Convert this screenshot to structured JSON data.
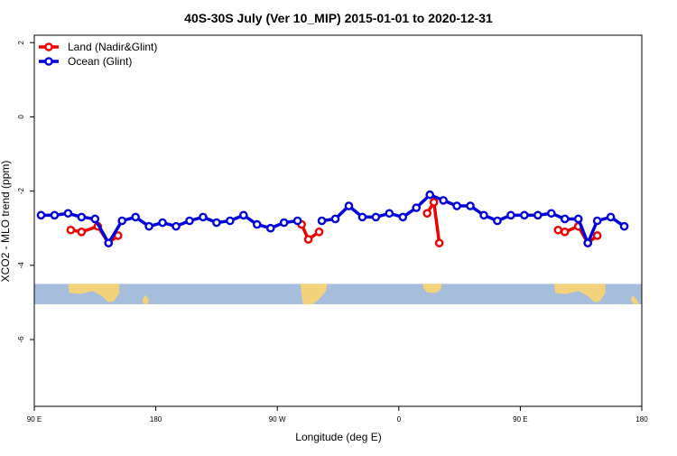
{
  "chart_data": {
    "type": "line",
    "title": "40S-30S July (Ver 10_MIP)   2015-01-01 to 2020-12-31",
    "xlabel": "Longitude (deg E)",
    "ylabel": "XCO2 - MLO trend (ppm)",
    "xlim": [
      90,
      540
    ],
    "ylim": [
      -7.8,
      2.2
    ],
    "x_ticks": [
      {
        "value": 90,
        "label": "90 E"
      },
      {
        "value": 180,
        "label": "180"
      },
      {
        "value": 270,
        "label": "90 W"
      },
      {
        "value": 360,
        "label": "0"
      },
      {
        "value": 450,
        "label": "90 E"
      },
      {
        "value": 540,
        "label": "180"
      }
    ],
    "y_ticks": [
      {
        "value": 2,
        "label": "2"
      },
      {
        "value": 0,
        "label": "0"
      },
      {
        "value": -2,
        "label": "-2"
      },
      {
        "value": -4,
        "label": "-4"
      },
      {
        "value": -6,
        "label": "-6"
      }
    ],
    "legend": {
      "position": "top-left",
      "entries": [
        {
          "label": "Land (Nadir&Glint)",
          "color": "#ee0000"
        },
        {
          "label": "Ocean (Glint)",
          "color": "#0000dd"
        }
      ]
    },
    "map_band": {
      "y_top": -4.5,
      "y_bottom": -5.05,
      "ocean_color": "#a7bddc",
      "land_color": "#f2d27a"
    },
    "series": [
      {
        "name": "Land (Nadir&Glint)",
        "color": "#ee0000",
        "segments": [
          [
            [
              117,
              -3.05
            ],
            [
              125,
              -3.1
            ],
            [
              137,
              -2.95
            ],
            [
              145,
              -3.4
            ],
            [
              152,
              -3.2
            ]
          ],
          [
            [
              288,
              -2.9
            ],
            [
              293,
              -3.3
            ],
            [
              301,
              -3.1
            ]
          ],
          [
            [
              381,
              -2.6
            ],
            [
              386,
              -2.3
            ],
            [
              390,
              -3.4
            ]
          ],
          [
            [
              478,
              -3.05
            ],
            [
              483,
              -3.1
            ],
            [
              493,
              -2.95
            ],
            [
              500,
              -3.4
            ],
            [
              507,
              -3.2
            ]
          ]
        ]
      },
      {
        "name": "Ocean (Glint)",
        "color": "#0000dd",
        "segments": [
          [
            [
              95,
              -2.65
            ],
            [
              105,
              -2.65
            ],
            [
              115,
              -2.6
            ],
            [
              125,
              -2.7
            ],
            [
              135,
              -2.75
            ],
            [
              145,
              -3.4
            ],
            [
              155,
              -2.8
            ],
            [
              165,
              -2.7
            ],
            [
              175,
              -2.95
            ],
            [
              185,
              -2.85
            ],
            [
              195,
              -2.95
            ],
            [
              205,
              -2.8
            ],
            [
              215,
              -2.7
            ],
            [
              225,
              -2.85
            ],
            [
              235,
              -2.8
            ],
            [
              245,
              -2.65
            ],
            [
              255,
              -2.9
            ],
            [
              265,
              -3.0
            ],
            [
              275,
              -2.85
            ],
            [
              285,
              -2.8
            ]
          ],
          [
            [
              303,
              -2.8
            ],
            [
              313,
              -2.75
            ],
            [
              323,
              -2.4
            ],
            [
              333,
              -2.7
            ],
            [
              343,
              -2.7
            ],
            [
              353,
              -2.6
            ],
            [
              363,
              -2.7
            ],
            [
              373,
              -2.45
            ],
            [
              383,
              -2.1
            ],
            [
              393,
              -2.25
            ],
            [
              403,
              -2.4
            ],
            [
              413,
              -2.4
            ],
            [
              423,
              -2.65
            ],
            [
              433,
              -2.8
            ],
            [
              443,
              -2.65
            ],
            [
              453,
              -2.65
            ],
            [
              463,
              -2.65
            ],
            [
              473,
              -2.6
            ],
            [
              483,
              -2.75
            ],
            [
              493,
              -2.75
            ],
            [
              500,
              -3.4
            ],
            [
              507,
              -2.8
            ],
            [
              517,
              -2.7
            ],
            [
              527,
              -2.95
            ]
          ]
        ]
      }
    ]
  }
}
